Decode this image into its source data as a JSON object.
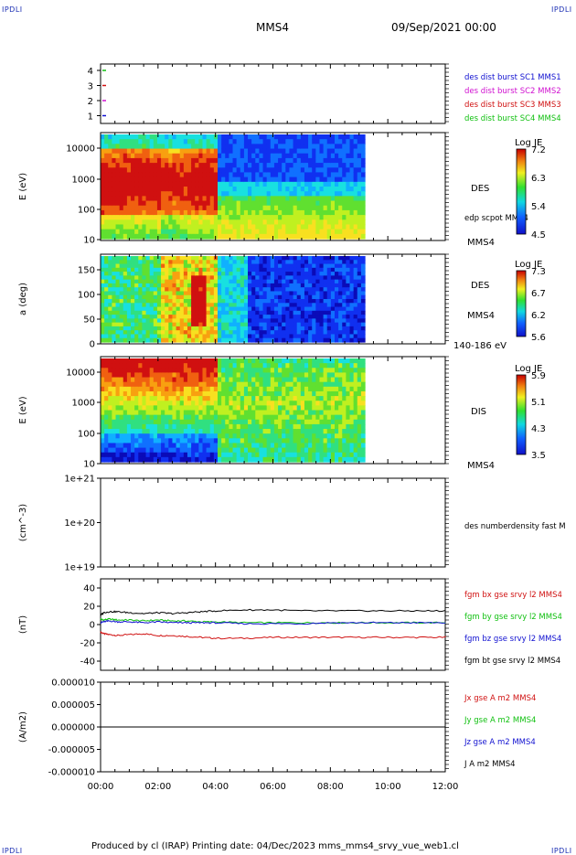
{
  "header": {
    "corner_label": "IPDLI",
    "spacecraft": "MMS4",
    "date_time": "09/Sep/2021 00:00"
  },
  "footer": {
    "text": "Produced by cl (IRAP)   Printing date: 04/Dec/2023   mms_mms4_srvy_vue_web1.cl"
  },
  "colors": {
    "blue": "#1010d0",
    "magenta": "#d010d0",
    "red": "#d01010",
    "green": "#10c010",
    "black": "#000000"
  },
  "chart_data": [
    {
      "type": "scatter",
      "panel": "availability",
      "yticks": [
        "4",
        "3",
        "2",
        "1"
      ],
      "ylim": [
        0.5,
        4.5
      ],
      "points": [
        {
          "sc": 4,
          "x": "00:00",
          "color": "#10c010"
        },
        {
          "sc": 3,
          "x": "00:00",
          "color": "#d01010"
        },
        {
          "sc": 2,
          "x": "00:00",
          "color": "#d010d0"
        },
        {
          "sc": 1,
          "x": "00:00",
          "color": "#1010d0"
        }
      ],
      "legend": [
        {
          "label": "des dist burst SC1 MMS1",
          "color": "#1010d0"
        },
        {
          "label": "des dist burst SC2 MMS2",
          "color": "#d010d0"
        },
        {
          "label": "des dist burst SC3 MMS3",
          "color": "#d01010"
        },
        {
          "label": "des dist burst SC4 MMS4",
          "color": "#10c010"
        }
      ]
    },
    {
      "type": "heatmap",
      "panel": "des-energy",
      "ylabel": "E (eV)",
      "scale": "log",
      "ylim": [
        10,
        30000
      ],
      "yticks": [
        "10000",
        "1000",
        "100",
        "10"
      ],
      "right_labels": [
        "DES",
        "edp scpot MMS4",
        "MMS4"
      ],
      "colorbar": {
        "title": "Log JE",
        "ticks": [
          "7.2",
          "6.3",
          "5.4",
          "4.5"
        ]
      }
    },
    {
      "type": "heatmap",
      "panel": "des-pitch-angle",
      "ylabel": "a (deg)",
      "ylim": [
        0,
        180
      ],
      "yticks": [
        "150",
        "100",
        "50",
        "0"
      ],
      "right_labels": [
        "DES",
        "MMS4",
        "140-186 eV"
      ],
      "colorbar": {
        "title": "Log JE",
        "ticks": [
          "7.3",
          "6.7",
          "6.2",
          "5.6"
        ]
      }
    },
    {
      "type": "heatmap",
      "panel": "dis-energy",
      "ylabel": "E (eV)",
      "scale": "log",
      "ylim": [
        10,
        30000
      ],
      "yticks": [
        "10000",
        "1000",
        "100",
        "10"
      ],
      "right_labels": [
        "DIS",
        "MMS4"
      ],
      "colorbar": {
        "title": "Log JE",
        "ticks": [
          "5.9",
          "5.1",
          "4.3",
          "3.5"
        ]
      }
    },
    {
      "type": "line",
      "panel": "density",
      "ylabel": "(cm^-3)",
      "scale": "log",
      "yticks": [
        "1e+21",
        "1e+20",
        "1e+19"
      ],
      "ylim": [
        1e+19,
        1e+21
      ],
      "legend": [
        {
          "label": "des numberdensity fast M",
          "color": "#000000"
        }
      ],
      "series": []
    },
    {
      "type": "line",
      "panel": "magnetic-field",
      "ylabel": "(nT)",
      "ylim": [
        -50,
        50
      ],
      "yticks": [
        "40",
        "20",
        "0",
        "-20",
        "-40"
      ],
      "x": [
        0.0,
        0.1,
        0.3,
        0.6,
        1.0,
        1.5,
        2.0,
        2.5,
        3.0,
        3.5,
        4.0,
        5.0,
        6.0,
        7.0,
        8.0,
        9.0,
        10.0,
        11.0,
        12.0
      ],
      "series": [
        {
          "name": "fgm bx gse srvy l2 MMS4",
          "color": "#d01010",
          "values": [
            -8,
            -10,
            -11,
            -12,
            -11,
            -10,
            -12,
            -12,
            -13,
            -14,
            -15,
            -15,
            -14,
            -14,
            -14,
            -14,
            -14,
            -14,
            -14
          ]
        },
        {
          "name": "fgm by gse srvy l2 MMS4",
          "color": "#10c010",
          "values": [
            6,
            5,
            6,
            5,
            5,
            4,
            5,
            4,
            4,
            3,
            3,
            2,
            2,
            2,
            2,
            2,
            2,
            2,
            2
          ]
        },
        {
          "name": "fgm bz gse srvy l2 MMS4",
          "color": "#1010d0",
          "values": [
            2,
            3,
            4,
            3,
            3,
            2,
            3,
            2,
            2,
            2,
            2,
            1,
            1,
            1,
            2,
            2,
            2,
            2,
            2
          ]
        },
        {
          "name": "fgm bt gse srvy l2 MMS4",
          "color": "#000000",
          "values": [
            10,
            13,
            14,
            14,
            13,
            12,
            13,
            12,
            13,
            14,
            15,
            16,
            16,
            15,
            15,
            15,
            15,
            15,
            15
          ]
        }
      ]
    },
    {
      "type": "line",
      "panel": "current-density",
      "ylabel": "(A/m2)",
      "ylim": [
        -1e-05,
        1e-05
      ],
      "yticks": [
        "0.000010",
        "0.000005",
        "0.000000",
        "-0.000005",
        "-0.000010"
      ],
      "x": [
        0.0,
        12.0
      ],
      "series": [
        {
          "name": "Jx gse A m2 MMS4",
          "color": "#d01010",
          "values": [
            0,
            0
          ]
        },
        {
          "name": "Jy gse A m2 MMS4",
          "color": "#10c010",
          "values": [
            0,
            0
          ]
        },
        {
          "name": "Jz gse A m2 MMS4",
          "color": "#1010d0",
          "values": [
            0,
            0
          ]
        },
        {
          "name": "J A m2 MMS4",
          "color": "#000000",
          "values": [
            0,
            0
          ]
        }
      ]
    }
  ],
  "time_axis": {
    "xlim": [
      0,
      12
    ],
    "ticks": [
      "00:00",
      "02:00",
      "04:00",
      "06:00",
      "08:00",
      "10:00",
      "12:00"
    ],
    "data_end_hour": 9.2
  }
}
